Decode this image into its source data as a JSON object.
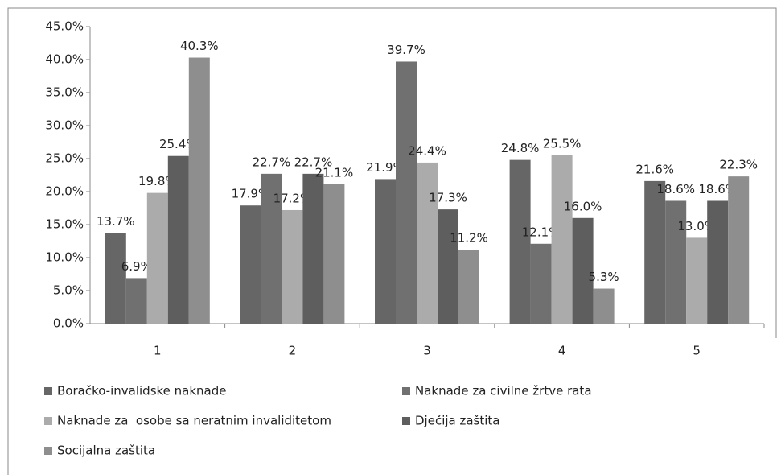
{
  "chart_data": {
    "type": "bar",
    "categories": [
      "1",
      "2",
      "3",
      "4",
      "5"
    ],
    "series": [
      {
        "name": "Boračko-invalidske naknade",
        "color": "#666666",
        "values": [
          13.7,
          17.9,
          21.9,
          24.8,
          21.6
        ],
        "value_labels": [
          "13.7%",
          "17.9%",
          "21.9%",
          "24.8%",
          "21.6%"
        ]
      },
      {
        "name": "Naknade za civilne žrtve rata",
        "color": "#707070",
        "values": [
          6.9,
          22.7,
          39.7,
          12.1,
          18.6
        ],
        "value_labels": [
          "6.9%",
          "22.7%",
          "39.7%",
          "12.1%",
          "18.6%"
        ]
      },
      {
        "name": "Naknade za  osobe sa neratnim invaliditetom",
        "color": "#ababab",
        "values": [
          19.8,
          17.2,
          24.4,
          25.5,
          13.0
        ],
        "value_labels": [
          "19.8%",
          "17.2%",
          "24.4%",
          "25.5%",
          "13.0%"
        ]
      },
      {
        "name": "Dječija zaštita",
        "color": "#5e5e5e",
        "values": [
          25.4,
          22.7,
          17.3,
          16.0,
          18.6
        ],
        "value_labels": [
          "25.4%",
          "22.7%",
          "17.3%",
          "16.0%",
          "18.6%"
        ]
      },
      {
        "name": "Socijalna zaštita",
        "color": "#8e8e8e",
        "values": [
          40.3,
          21.1,
          11.2,
          5.3,
          22.3
        ],
        "value_labels": [
          "40.3%",
          "21.1%",
          "11.2%",
          "5.3%",
          "22.3%"
        ]
      }
    ],
    "ylim": [
      0,
      45
    ],
    "yticks": [
      {
        "value": 0,
        "label": "0.0%"
      },
      {
        "value": 5,
        "label": "5.0%"
      },
      {
        "value": 10,
        "label": "10.0%"
      },
      {
        "value": 15,
        "label": "15.0%"
      },
      {
        "value": 20,
        "label": "20.0%"
      },
      {
        "value": 25,
        "label": "25.0%"
      },
      {
        "value": 30,
        "label": "30.0%"
      },
      {
        "value": 35,
        "label": "35.0%"
      },
      {
        "value": 40,
        "label": "40.0%"
      },
      {
        "value": 45,
        "label": "45.0%"
      }
    ],
    "legend": "bottom"
  }
}
